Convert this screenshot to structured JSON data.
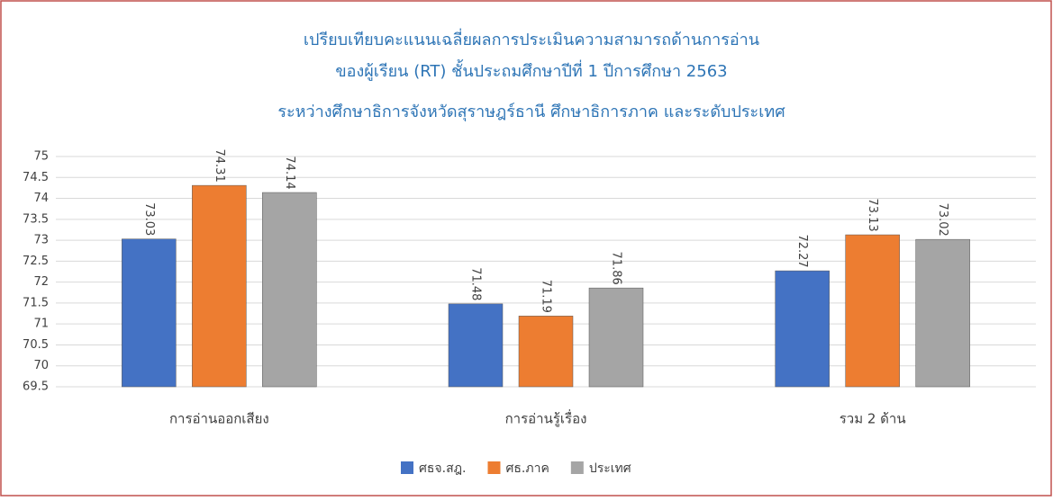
{
  "chart_data": {
    "type": "bar",
    "title": [
      "เปรียบเทียบคะแนนเฉลี่ยผลการประเมินความสามารถด้านการอ่าน",
      "ของผู้เรียน (RT) ชั้นประถมศึกษาปีที่ 1 ปีการศึกษา 2563",
      "ระหว่างศึกษาธิการจังหวัดสุราษฎร์ธานี ศึกษาธิการภาค และระดับประเทศ"
    ],
    "categories": [
      "การอ่านออกเสียง",
      "การอ่านรู้เรื่อง",
      "รวม 2 ด้าน"
    ],
    "series": [
      {
        "name": "ศธจ.สฎ.",
        "color": "#4472c4",
        "values": [
          73.03,
          71.48,
          72.27
        ]
      },
      {
        "name": "ศธ.ภาค",
        "color": "#ed7d31",
        "values": [
          74.31,
          71.19,
          73.13
        ]
      },
      {
        "name": "ประเทศ",
        "color": "#a5a5a5",
        "values": [
          74.14,
          71.86,
          73.02
        ]
      }
    ],
    "ylim": [
      69.5,
      75
    ],
    "yticks": [
      69.5,
      70,
      70.5,
      71,
      71.5,
      72,
      72.5,
      73,
      73.5,
      74,
      74.5,
      75
    ],
    "grid": true,
    "legend": "bottom"
  }
}
